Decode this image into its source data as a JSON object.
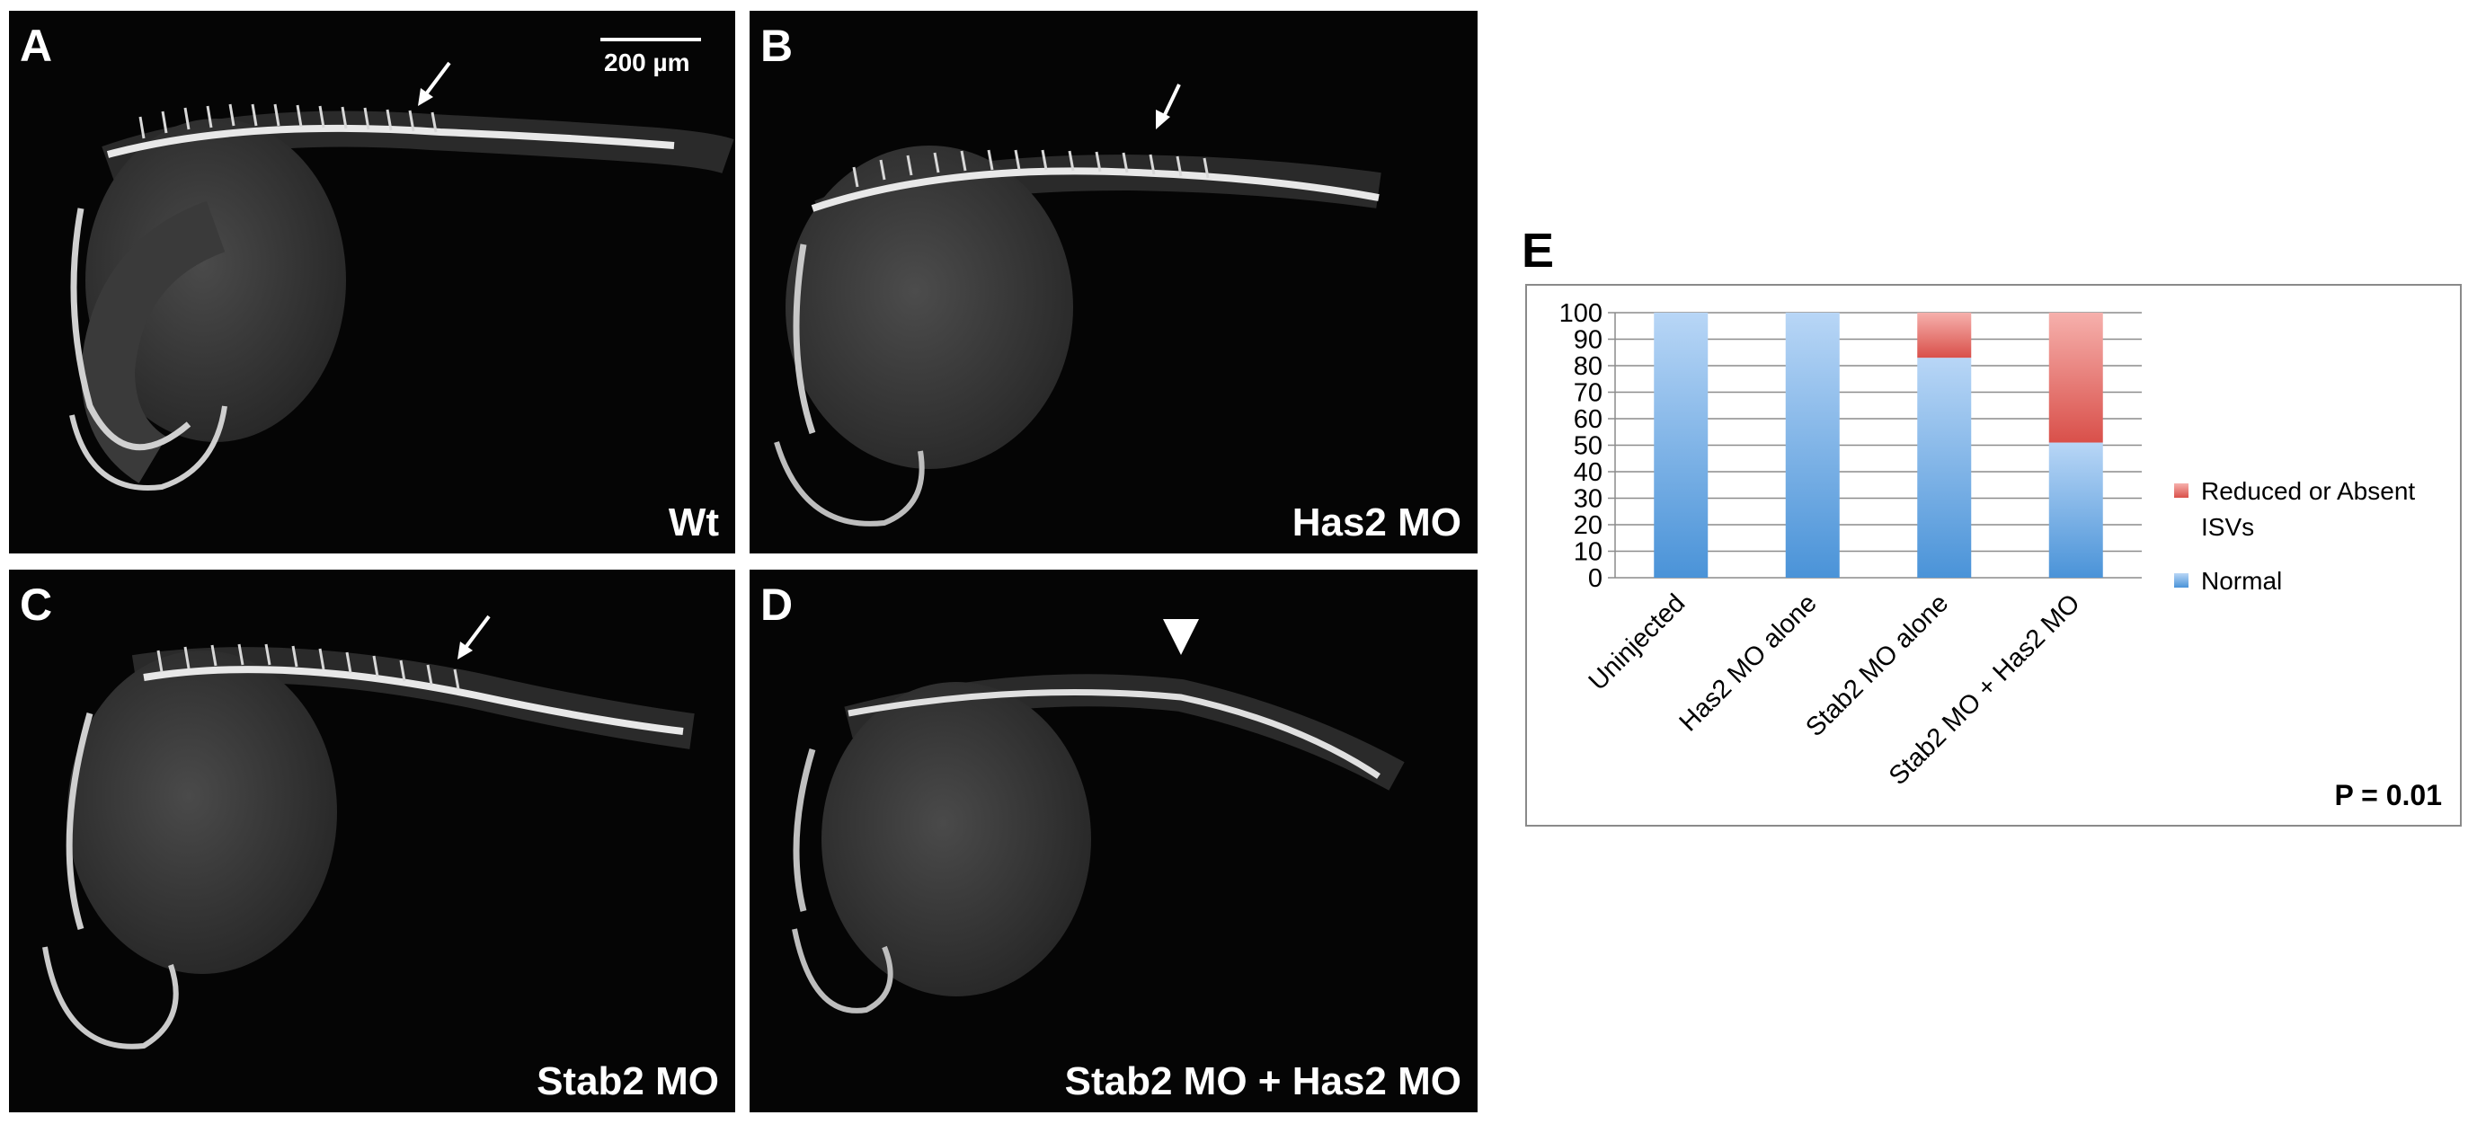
{
  "panels": [
    {
      "letter": "A",
      "condition": "Wt",
      "marker": "arrow"
    },
    {
      "letter": "B",
      "condition": "Has2 MO",
      "marker": "arrow"
    },
    {
      "letter": "C",
      "condition": "Stab2 MO",
      "marker": "arrow"
    },
    {
      "letter": "D",
      "condition": "Stab2 MO + Has2 MO",
      "marker": "arrowhead"
    }
  ],
  "scale_bar": {
    "label": "200 µm"
  },
  "chart_panel_letter": "E",
  "colors": {
    "normal_top": "#b8d6f6",
    "normal_bottom": "#4a93d8",
    "reduced_top": "#f6b0ac",
    "reduced_bottom": "#d9504a",
    "panel_bg": "#050505"
  },
  "chart_data": {
    "type": "bar",
    "stacked": true,
    "categories": [
      "Uninjected",
      "Has2 MO alone",
      "Stab2 MO alone",
      "Stab2 MO + Has2 MO"
    ],
    "series": [
      {
        "name": "Normal",
        "values": [
          100,
          100,
          83,
          51
        ]
      },
      {
        "name": "Reduced or Absent ISVs",
        "values": [
          0,
          0,
          17,
          49
        ]
      }
    ],
    "ylim": [
      0,
      100
    ],
    "yticks": [
      0,
      10,
      20,
      30,
      40,
      50,
      60,
      70,
      80,
      90,
      100
    ],
    "grid": true,
    "legend_position": "right",
    "legend_entries": [
      "Reduced or Absent ISVs",
      "Normal"
    ],
    "annotation": "P = 0.01"
  }
}
